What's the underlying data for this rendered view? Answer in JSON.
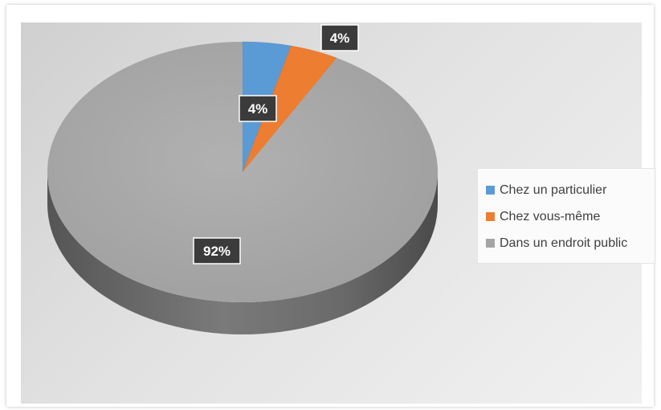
{
  "chart_data": {
    "type": "pie",
    "title": "",
    "categories": [
      "Chez un particulier",
      "Chez vous-même",
      "Dans un endroit public"
    ],
    "values": [
      4,
      4,
      92
    ],
    "value_labels": [
      "4%",
      "4%",
      "92%"
    ],
    "unit": "%",
    "colors": [
      "#5b9bd5",
      "#ed7d31",
      "#a5a5a5"
    ],
    "legend_position": "right",
    "style": "3d"
  }
}
